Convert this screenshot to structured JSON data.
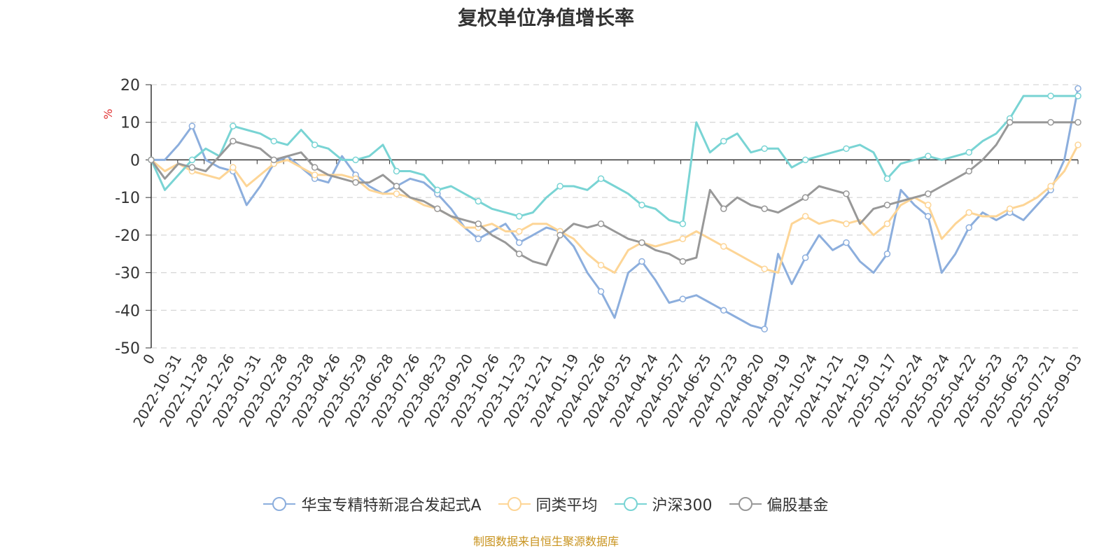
{
  "chart_data": {
    "type": "line",
    "title": "复权单位净值增长率",
    "ylabel": "%",
    "ylim": [
      -50,
      20
    ],
    "yticks": [
      "20",
      "10",
      "0",
      "-10",
      "-20",
      "-30",
      "-40",
      "-50"
    ],
    "xticks": [
      "0",
      "2022-10-31",
      "2022-11-28",
      "2022-12-26",
      "2023-01-31",
      "2023-02-28",
      "2023-03-28",
      "2023-04-26",
      "2023-05-29",
      "2023-06-28",
      "2023-07-26",
      "2023-08-23",
      "2023-09-20",
      "2023-10-26",
      "2023-11-23",
      "2023-12-21",
      "2024-01-19",
      "2024-02-26",
      "2024-03-25",
      "2024-04-24",
      "2024-05-27",
      "2024-06-25",
      "2024-07-23",
      "2024-08-20",
      "2024-09-19",
      "2024-10-24",
      "2024-11-21",
      "2024-12-19",
      "2025-01-17",
      "2025-02-24",
      "2025-03-24",
      "2025-04-22",
      "2025-05-23",
      "2025-06-23",
      "2025-07-21",
      "2025-09-03"
    ],
    "grid": true,
    "legend_position": "bottom",
    "series": [
      {
        "name": "华宝专精特新混合发起式A",
        "color": "#8caedd",
        "values": [
          0,
          0,
          4,
          9,
          0,
          -2,
          -3,
          -12,
          -7,
          -1,
          1,
          -2,
          -5,
          -6,
          1,
          -4,
          -7,
          -9,
          -7,
          -5,
          -6,
          -9,
          -13,
          -18,
          -21,
          -19,
          -17,
          -22,
          -20,
          -18,
          -19,
          -23,
          -30,
          -35,
          -42,
          -30,
          -27,
          -32,
          -38,
          -37,
          -36,
          -38,
          -40,
          -42,
          -44,
          -45,
          -25,
          -33,
          -26,
          -20,
          -24,
          -22,
          -27,
          -30,
          -25,
          -8,
          -12,
          -15,
          -30,
          -25,
          -18,
          -14,
          -16,
          -14,
          -16,
          -12,
          -8,
          0,
          19
        ]
      },
      {
        "name": "同类平均",
        "color": "#fdd596",
        "values": [
          0,
          -3,
          -1,
          -3,
          -4,
          -5,
          -2,
          -7,
          -4,
          -1,
          0,
          -2,
          -4,
          -4,
          -4,
          -5,
          -8,
          -9,
          -9,
          -10,
          -12,
          -13,
          -15,
          -18,
          -18,
          -17,
          -19,
          -19,
          -17,
          -17,
          -19,
          -21,
          -25,
          -28,
          -30,
          -24,
          -22,
          -23,
          -22,
          -21,
          -19,
          -21,
          -23,
          -25,
          -27,
          -29,
          -30,
          -17,
          -15,
          -17,
          -16,
          -17,
          -16,
          -20,
          -17,
          -12,
          -10,
          -12,
          -21,
          -17,
          -14,
          -15,
          -15,
          -13,
          -12,
          -10,
          -7,
          -3,
          4
        ]
      },
      {
        "name": "沪深300",
        "color": "#79d4d4",
        "values": [
          0,
          -8,
          -4,
          0,
          3,
          1,
          9,
          8,
          7,
          5,
          4,
          8,
          4,
          3,
          0,
          0,
          1,
          4,
          -3,
          -3,
          -4,
          -8,
          -7,
          -9,
          -11,
          -13,
          -14,
          -15,
          -14,
          -10,
          -7,
          -7,
          -8,
          -5,
          -7,
          -9,
          -12,
          -13,
          -16,
          -17,
          10,
          2,
          5,
          7,
          2,
          3,
          3,
          -2,
          0,
          1,
          2,
          3,
          4,
          2,
          -5,
          -1,
          0,
          1,
          0,
          1,
          2,
          5,
          7,
          11,
          17,
          17,
          17,
          17,
          17
        ]
      },
      {
        "name": "偏股基金",
        "color": "#989898",
        "values": [
          0,
          -5,
          -1,
          -2,
          -3,
          1,
          5,
          4,
          3,
          0,
          1,
          2,
          -2,
          -4,
          -5,
          -6,
          -6,
          -4,
          -7,
          -10,
          -11,
          -13,
          -15,
          -16,
          -17,
          -20,
          -22,
          -25,
          -27,
          -28,
          -20,
          -17,
          -18,
          -17,
          -19,
          -21,
          -22,
          -24,
          -25,
          -27,
          -26,
          -8,
          -13,
          -10,
          -12,
          -13,
          -14,
          -12,
          -10,
          -7,
          -8,
          -9,
          -17,
          -13,
          -12,
          -11,
          -10,
          -9,
          -7,
          -5,
          -3,
          0,
          4,
          10,
          10,
          10,
          10,
          10,
          10
        ]
      }
    ]
  },
  "legend_items": [
    {
      "label": "华宝专精特新混合发起式A"
    },
    {
      "label": "同类平均"
    },
    {
      "label": "沪深300"
    },
    {
      "label": "偏股基金"
    }
  ],
  "source_note": "制图数据来自恒生聚源数据库"
}
